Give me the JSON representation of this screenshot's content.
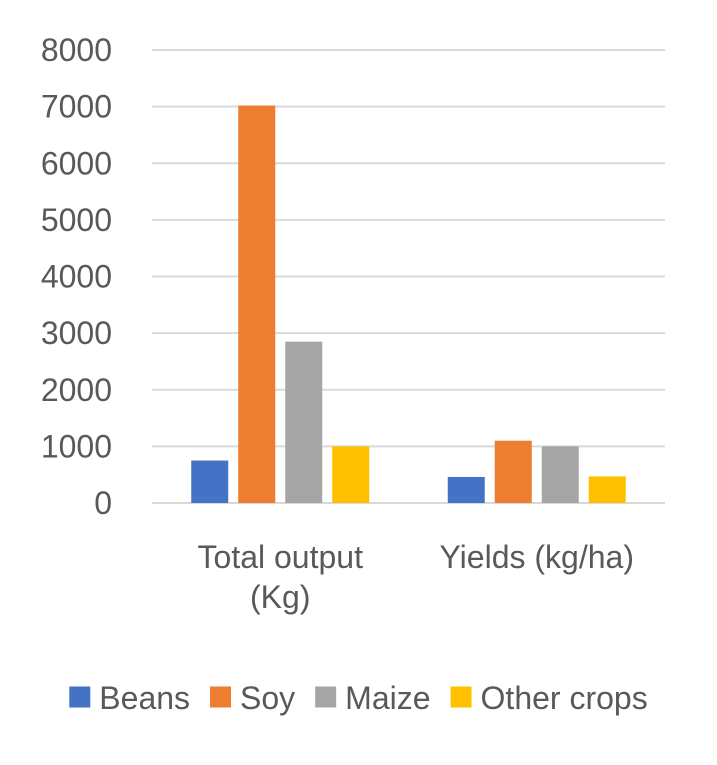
{
  "chart_data": {
    "type": "bar",
    "categories": [
      [
        "Total output",
        "(Kg)"
      ],
      [
        "Yields (kg/ha)"
      ]
    ],
    "series": [
      {
        "name": "Beans",
        "values": [
          750,
          460
        ],
        "color": "#4472C4"
      },
      {
        "name": "Soy",
        "values": [
          7020,
          1100
        ],
        "color": "#ED7D31"
      },
      {
        "name": "Maize",
        "values": [
          2850,
          1000
        ],
        "color": "#A5A5A5"
      },
      {
        "name": "Other crops",
        "values": [
          1000,
          470
        ],
        "color": "#FFC000"
      }
    ],
    "y_ticks": [
      "0",
      "1000",
      "2000",
      "3000",
      "4000",
      "5000",
      "6000",
      "7000",
      "8000"
    ],
    "ylim": [
      0,
      8000
    ],
    "grid": true,
    "legend_position": "bottom"
  }
}
